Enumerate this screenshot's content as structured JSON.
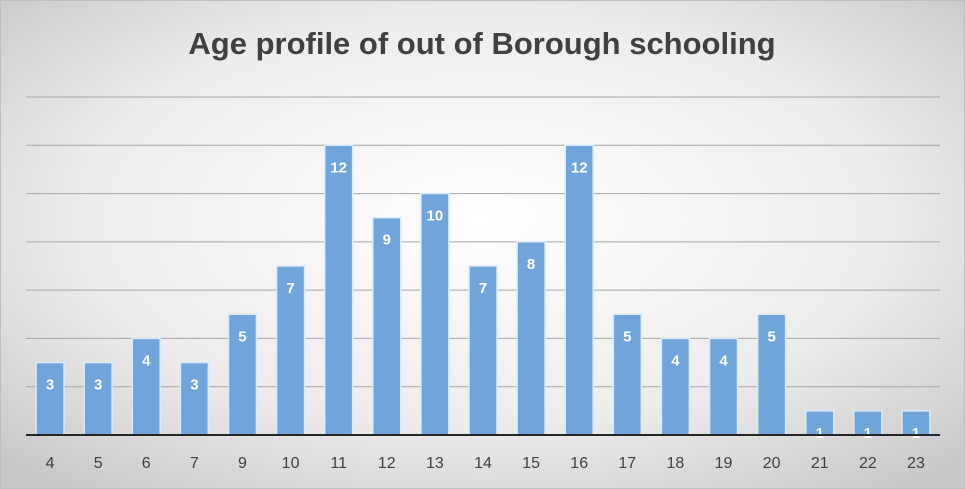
{
  "chart_data": {
    "type": "bar",
    "title": "Age profile of out of Borough schooling",
    "categories": [
      "4",
      "5",
      "6",
      "7",
      "9",
      "10",
      "11",
      "12",
      "13",
      "14",
      "15",
      "16",
      "17",
      "18",
      "19",
      "20",
      "21",
      "22",
      "23"
    ],
    "values": [
      3,
      3,
      4,
      3,
      5,
      7,
      12,
      9,
      10,
      7,
      8,
      12,
      5,
      4,
      4,
      5,
      1,
      1,
      1
    ],
    "color": "#6fa5db",
    "ylim": [
      0,
      14
    ],
    "yticks": [
      0,
      2,
      4,
      6,
      8,
      10,
      12,
      14
    ],
    "grid": true
  }
}
